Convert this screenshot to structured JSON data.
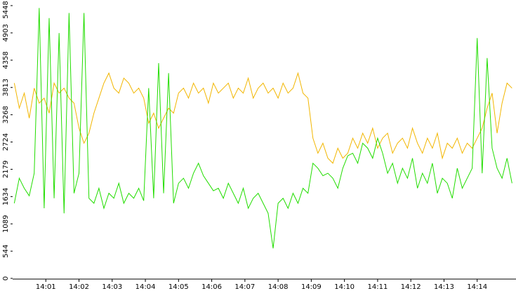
{
  "chart_data": {
    "type": "line",
    "x": [
      0.05,
      0.2,
      0.35,
      0.5,
      0.65,
      0.8,
      0.95,
      1.1,
      1.25,
      1.4,
      1.55,
      1.7,
      1.85,
      2,
      2.15,
      2.3,
      2.45,
      2.6,
      2.75,
      2.9,
      3.05,
      3.2,
      3.35,
      3.5,
      3.65,
      3.8,
      3.95,
      4.1,
      4.25,
      4.4,
      4.55,
      4.7,
      4.85,
      5,
      5.15,
      5.3,
      5.45,
      5.6,
      5.75,
      5.9,
      6.05,
      6.2,
      6.35,
      6.5,
      6.65,
      6.8,
      6.95,
      7.1,
      7.25,
      7.4,
      7.55,
      7.7,
      7.85,
      8,
      8.15,
      8.3,
      8.45,
      8.6,
      8.75,
      8.9,
      9.05,
      9.2,
      9.35,
      9.5,
      9.65,
      9.8,
      9.95,
      10.1,
      10.25,
      10.4,
      10.55,
      10.7,
      10.85,
      11,
      11.15,
      11.3,
      11.45,
      11.6,
      11.75,
      11.9,
      12.05,
      12.2,
      12.35,
      12.5,
      12.65,
      12.8,
      12.95,
      13.1,
      13.25,
      13.4,
      13.55,
      13.7,
      13.85,
      14,
      14.15,
      14.3,
      14.45,
      14.6,
      14.75,
      14.9,
      15.05
    ],
    "series": [
      {
        "color": "#f2b600",
        "values": [
          3900,
          3400,
          3700,
          3200,
          3800,
          3500,
          3600,
          3300,
          3900,
          3700,
          3800,
          3600,
          3500,
          3000,
          2700,
          2900,
          3300,
          3600,
          3900,
          4100,
          3800,
          3700,
          4000,
          3900,
          3700,
          3800,
          3600,
          3100,
          3300,
          3000,
          3200,
          3400,
          3300,
          3700,
          3800,
          3600,
          3900,
          3700,
          3800,
          3500,
          3900,
          3700,
          3800,
          3900,
          3600,
          3800,
          3700,
          4000,
          3600,
          3800,
          3900,
          3700,
          3800,
          3600,
          3900,
          3700,
          3800,
          4100,
          3700,
          3600,
          2800,
          2500,
          2700,
          2400,
          2300,
          2600,
          2400,
          2500,
          2800,
          2600,
          2900,
          2700,
          3000,
          2600,
          2800,
          2900,
          2500,
          2700,
          2800,
          2600,
          3000,
          2700,
          2500,
          2800,
          2600,
          2900,
          2400,
          2700,
          2600,
          2800,
          2500,
          2700,
          2600,
          2800,
          3000,
          3400,
          3700,
          2900,
          3500,
          3900,
          3800
        ]
      },
      {
        "color": "#22dd00",
        "values": [
          1500,
          2000,
          1800,
          1650,
          2100,
          5400,
          1400,
          5200,
          1600,
          4900,
          1300,
          5300,
          1700,
          2100,
          5300,
          1600,
          1500,
          1800,
          1400,
          1700,
          1600,
          1900,
          1500,
          1700,
          1600,
          1800,
          1550,
          3800,
          1600,
          4300,
          1700,
          4100,
          1500,
          1900,
          2000,
          1800,
          2100,
          2300,
          2050,
          1900,
          1750,
          1800,
          1600,
          1900,
          1700,
          1500,
          1800,
          1400,
          1600,
          1700,
          1500,
          1300,
          600,
          1500,
          1600,
          1400,
          1700,
          1500,
          1800,
          1700,
          2300,
          2200,
          2050,
          2100,
          2000,
          1800,
          2200,
          2450,
          2500,
          2300,
          2700,
          2600,
          2400,
          2800,
          2500,
          2100,
          2300,
          1900,
          2200,
          2000,
          2400,
          1800,
          2100,
          1900,
          2300,
          1700,
          2000,
          1900,
          1600,
          2200,
          1800,
          2000,
          2200,
          4800,
          2100,
          4400,
          2600,
          2200,
          2000,
          2400,
          1900
        ]
      }
    ],
    "xlim": [
      0,
      15.17
    ],
    "xticks": [
      {
        "value": 1,
        "label": "14:01"
      },
      {
        "value": 2,
        "label": "14:02"
      },
      {
        "value": 3,
        "label": "14:03"
      },
      {
        "value": 4,
        "label": "14:04"
      },
      {
        "value": 5,
        "label": "14:05"
      },
      {
        "value": 6,
        "label": "14:06"
      },
      {
        "value": 7,
        "label": "14:07"
      },
      {
        "value": 8,
        "label": "14:08"
      },
      {
        "value": 9,
        "label": "14:09"
      },
      {
        "value": 10,
        "label": "14:10"
      },
      {
        "value": 11,
        "label": "14:11"
      },
      {
        "value": 12,
        "label": "14:12"
      },
      {
        "value": 13,
        "label": "14:13"
      },
      {
        "value": 14,
        "label": "14:14"
      }
    ],
    "ylim": [
      0,
      5560
    ],
    "yticks": [
      0,
      544,
      1089,
      1634,
      2179,
      2724,
      3268,
      3813,
      4358,
      4903,
      5448
    ]
  }
}
